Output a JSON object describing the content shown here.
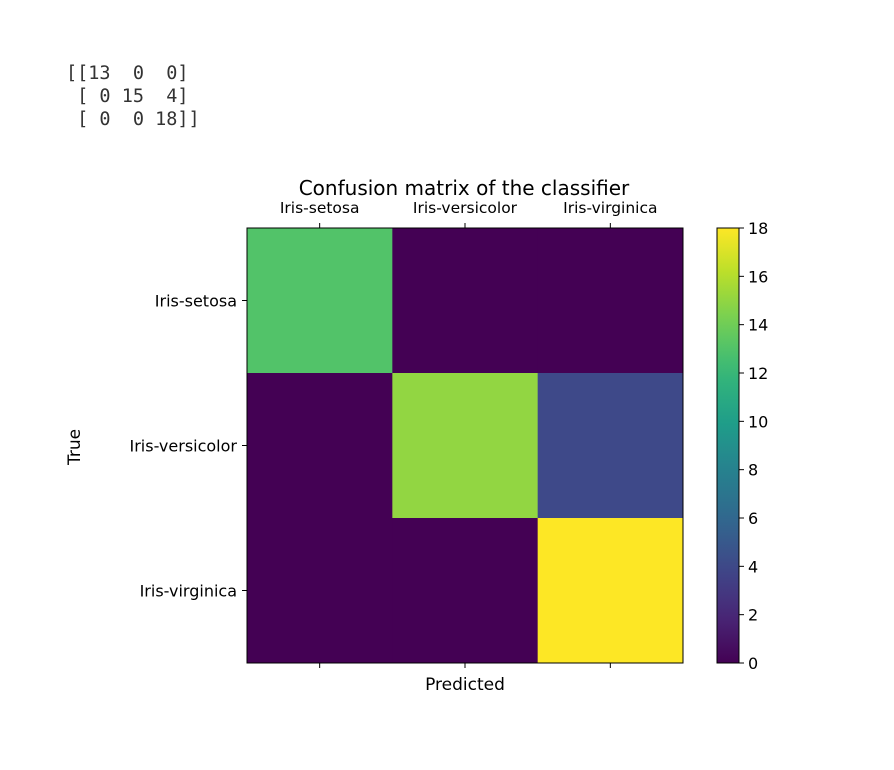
{
  "printed_output": {
    "lines": [
      "[[13  0  0]",
      " [ 0 15  4]",
      " [ 0  0 18]]"
    ]
  },
  "chart_data": {
    "type": "heatmap",
    "title": "Confusion matrix of the classifier",
    "xlabel": "Predicted",
    "ylabel": "True",
    "x_categories": [
      "Iris-setosa",
      "Iris-versicolor",
      "Iris-virginica"
    ],
    "y_categories": [
      "Iris-setosa",
      "Iris-versicolor",
      "Iris-virginica"
    ],
    "values": [
      [
        13,
        0,
        0
      ],
      [
        0,
        15,
        4
      ],
      [
        0,
        0,
        18
      ]
    ],
    "colormap": "viridis",
    "colorbar": {
      "min": 0,
      "max": 18,
      "ticks": [
        0,
        2,
        4,
        6,
        8,
        10,
        12,
        14,
        16,
        18
      ]
    }
  }
}
